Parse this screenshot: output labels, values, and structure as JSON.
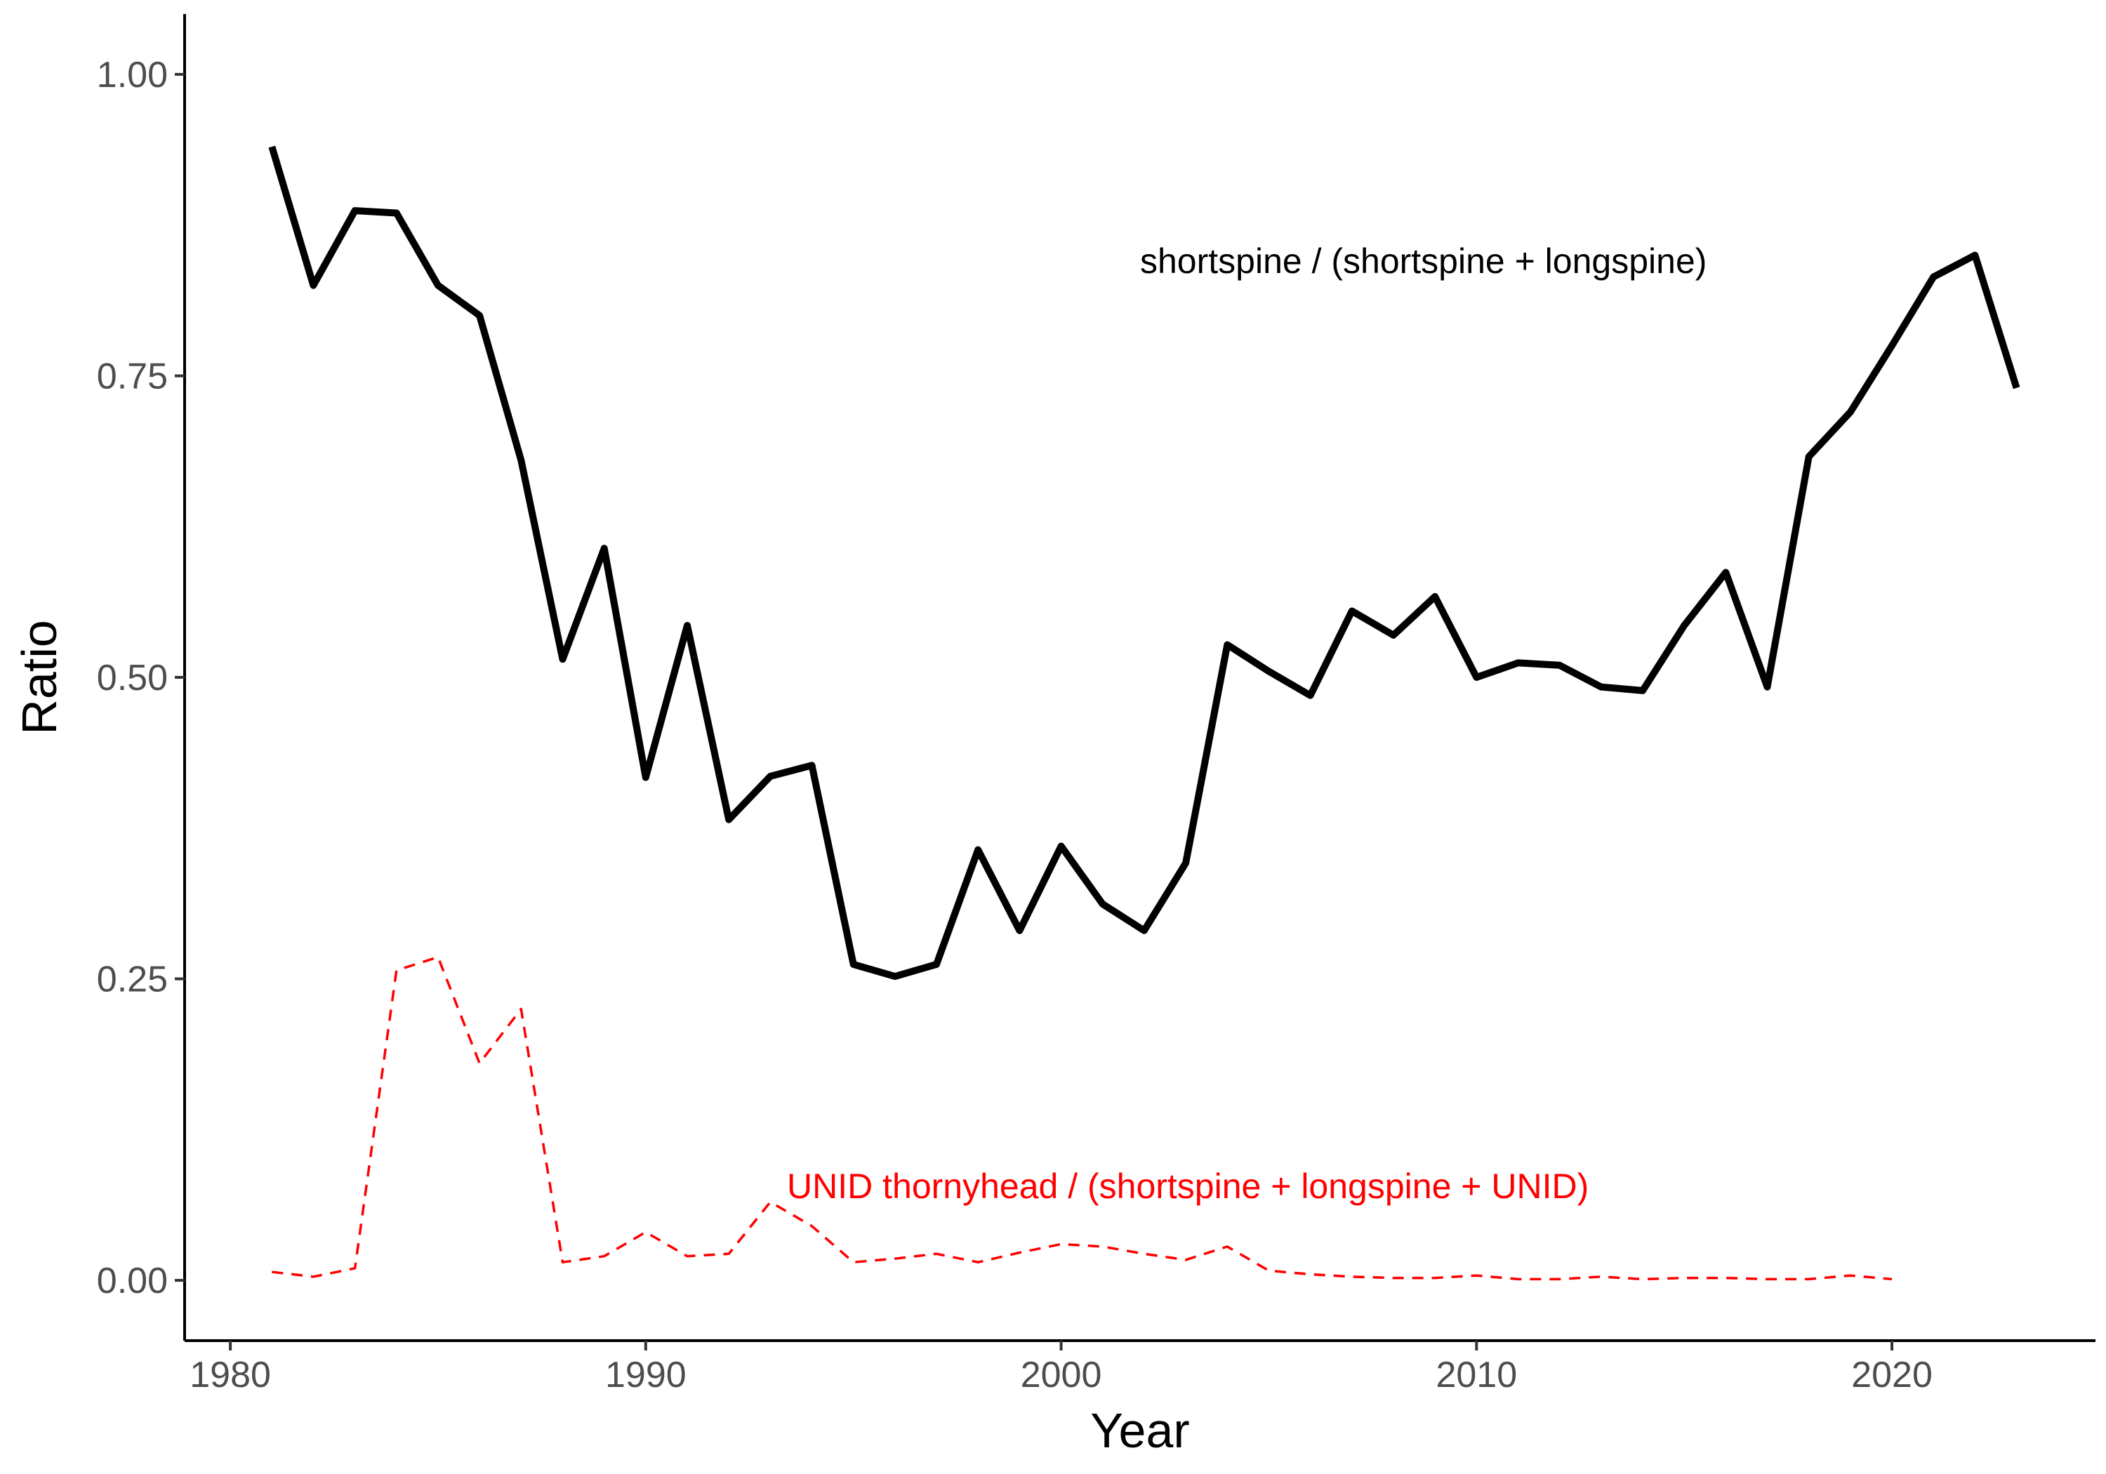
{
  "chart_data": {
    "type": "line",
    "xlabel": "Year",
    "ylabel": "Ratio",
    "xlim": [
      1978.9,
      2024.9
    ],
    "ylim": [
      -0.05,
      1.05
    ],
    "x_ticks": [
      1980,
      1990,
      2000,
      2010,
      2020
    ],
    "y_ticks": [
      0.0,
      0.25,
      0.5,
      0.75,
      1.0
    ],
    "x_tick_labels": [
      "1980",
      "1990",
      "2000",
      "2010",
      "2020"
    ],
    "y_tick_labels": [
      "0.00",
      "0.25",
      "0.50",
      "0.75",
      "1.00"
    ],
    "grid": false,
    "legend": "none",
    "series": [
      {
        "color": "#000000",
        "line_style": "solid",
        "x": [
          1981,
          1982,
          1983,
          1984,
          1985,
          1986,
          1987,
          1988,
          1989,
          1990,
          1991,
          1992,
          1993,
          1994,
          1995,
          1996,
          1997,
          1998,
          1999,
          2000,
          2001,
          2002,
          2003,
          2004,
          2005,
          2006,
          2007,
          2008,
          2009,
          2010,
          2011,
          2012,
          2013,
          2014,
          2015,
          2016,
          2017,
          2018,
          2019,
          2020,
          2021,
          2022,
          2023
        ],
        "y": [
          0.94,
          0.825,
          0.887,
          0.885,
          0.825,
          0.8,
          0.68,
          0.515,
          0.607,
          0.417,
          0.543,
          0.382,
          0.418,
          0.427,
          0.262,
          0.252,
          0.262,
          0.357,
          0.29,
          0.36,
          0.312,
          0.29,
          0.346,
          0.527,
          0.505,
          0.485,
          0.555,
          0.535,
          0.567,
          0.5,
          0.512,
          0.51,
          0.492,
          0.489,
          0.543,
          0.587,
          0.492,
          0.683,
          0.72,
          0.775,
          0.832,
          0.85,
          0.74
        ]
      },
      {
        "color": "#ff0000",
        "line_style": "dashed",
        "x": [
          1981,
          1982,
          1983,
          1984,
          1985,
          1986,
          1987,
          1988,
          1989,
          1990,
          1991,
          1992,
          1993,
          1994,
          1995,
          1996,
          1997,
          1998,
          1999,
          2000,
          2001,
          2002,
          2003,
          2004,
          2005,
          2006,
          2007,
          2008,
          2009,
          2010,
          2011,
          2012,
          2013,
          2014,
          2015,
          2016,
          2017,
          2018,
          2019,
          2020
        ],
        "y": [
          0.007,
          0.003,
          0.01,
          0.257,
          0.268,
          0.18,
          0.225,
          0.015,
          0.02,
          0.04,
          0.02,
          0.022,
          0.065,
          0.045,
          0.015,
          0.018,
          0.022,
          0.015,
          0.023,
          0.03,
          0.028,
          0.022,
          0.017,
          0.028,
          0.008,
          0.005,
          0.003,
          0.002,
          0.002,
          0.004,
          0.001,
          0.001,
          0.003,
          0.001,
          0.002,
          0.002,
          0.001,
          0.001,
          0.004,
          0.001
        ]
      }
    ],
    "annotations": [
      {
        "text": "shortspine / (shortspine + longspine)",
        "x": 2001.9,
        "y": 0.845,
        "color": "#000000"
      },
      {
        "text": "UNID thornyhead / (shortspine + longspine + UNID)",
        "x": 1993.4,
        "y": 0.078,
        "color": "#ff0000"
      }
    ]
  }
}
